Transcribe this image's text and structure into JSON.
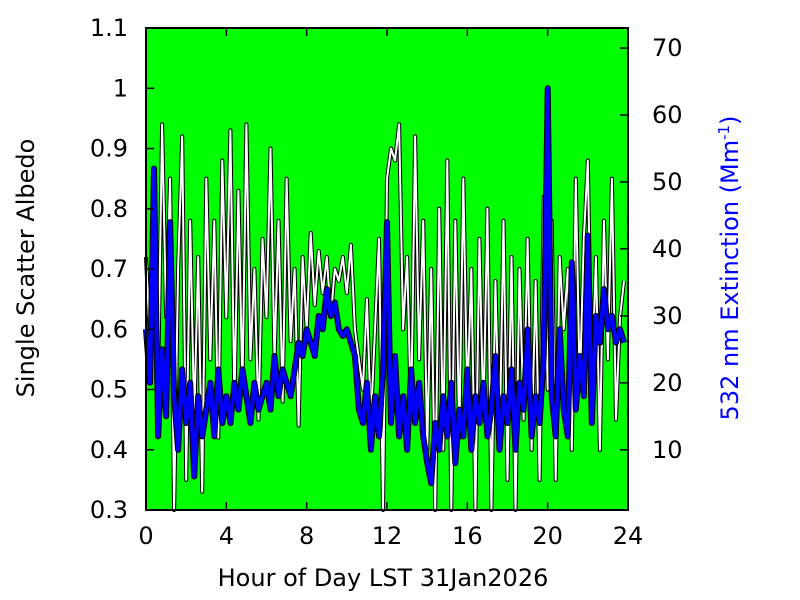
{
  "chart_data": {
    "type": "line",
    "title": "",
    "xlabel": "Hour of Day LST 31Jan2026",
    "ylabel_left": "Single Scatter Albedo",
    "ylabel_right_base": "532 nm Extinction (Mm",
    "ylabel_right_sup": "-1",
    "ylabel_right_close": ")",
    "xlim": [
      0,
      24
    ],
    "ylim_left": [
      0.3,
      1.1
    ],
    "ylim_right": [
      1,
      73
    ],
    "x_ticks": [
      "0",
      "4",
      "8",
      "12",
      "16",
      "20",
      "24"
    ],
    "y_left_ticks": [
      "0.3",
      "0.4",
      "0.5",
      "0.6",
      "0.7",
      "0.8",
      "0.9",
      "1",
      "1.1"
    ],
    "y_right_ticks": [
      "10",
      "20",
      "30",
      "40",
      "50",
      "60",
      "70"
    ],
    "grid": false,
    "plot_background": "#00ff00",
    "series": [
      {
        "axis": "left",
        "color": "#ffffff",
        "outline": "#000000",
        "x": [
          0.0,
          0.2,
          0.4,
          0.6,
          0.8,
          1.0,
          1.2,
          1.4,
          1.6,
          1.8,
          2.0,
          2.2,
          2.4,
          2.6,
          2.8,
          3.0,
          3.2,
          3.4,
          3.6,
          3.8,
          4.0,
          4.2,
          4.4,
          4.6,
          4.8,
          5.0,
          5.2,
          5.4,
          5.6,
          5.8,
          6.0,
          6.2,
          6.4,
          6.6,
          6.8,
          7.0,
          7.2,
          7.4,
          7.6,
          7.8,
          8.0,
          8.2,
          8.4,
          8.6,
          8.8,
          9.0,
          9.2,
          9.4,
          9.6,
          9.8,
          10.0,
          10.2,
          10.4,
          10.6,
          10.8,
          11.0,
          11.2,
          11.4,
          11.6,
          11.8,
          12.0,
          12.2,
          12.4,
          12.6,
          12.8,
          13.0,
          13.2,
          13.4,
          13.6,
          13.8,
          14.0,
          14.2,
          14.4,
          14.6,
          14.8,
          15.0,
          15.2,
          15.4,
          15.6,
          15.8,
          16.0,
          16.2,
          16.4,
          16.6,
          16.8,
          17.0,
          17.2,
          17.4,
          17.6,
          17.8,
          18.0,
          18.2,
          18.4,
          18.6,
          18.8,
          19.0,
          19.2,
          19.4,
          19.6,
          19.8,
          20.0,
          20.2,
          20.4,
          20.6,
          20.8,
          21.0,
          21.2,
          21.4,
          21.6,
          21.8,
          22.0,
          22.2,
          22.4,
          22.6,
          22.8,
          23.0,
          23.2,
          23.4,
          23.6,
          23.8
        ],
        "y": [
          0.72,
          0.58,
          0.8,
          0.51,
          0.94,
          0.62,
          0.85,
          0.3,
          0.7,
          0.92,
          0.35,
          0.78,
          0.45,
          0.72,
          0.33,
          0.85,
          0.55,
          0.78,
          0.42,
          0.88,
          0.62,
          0.93,
          0.48,
          0.83,
          0.5,
          0.94,
          0.55,
          0.7,
          0.45,
          0.75,
          0.62,
          0.9,
          0.55,
          0.78,
          0.48,
          0.85,
          0.58,
          0.7,
          0.44,
          0.72,
          0.6,
          0.76,
          0.64,
          0.73,
          0.66,
          0.72,
          0.62,
          0.7,
          0.68,
          0.72,
          0.66,
          0.74,
          0.6,
          0.55,
          0.5,
          0.65,
          0.45,
          0.6,
          0.75,
          0.3,
          0.85,
          0.9,
          0.88,
          0.94,
          0.6,
          0.72,
          0.45,
          0.92,
          0.55,
          0.78,
          0.4,
          0.7,
          0.3,
          0.8,
          0.4,
          0.88,
          0.3,
          0.78,
          0.42,
          0.85,
          0.48,
          0.7,
          0.3,
          0.75,
          0.45,
          0.8,
          0.3,
          0.68,
          0.4,
          0.78,
          0.35,
          0.72,
          0.3,
          0.7,
          0.45,
          0.75,
          0.4,
          0.68,
          0.35,
          0.82,
          0.5,
          0.78,
          0.35,
          0.72,
          0.6,
          0.7,
          0.4,
          0.85,
          0.5,
          0.75,
          0.88,
          0.5,
          0.72,
          0.4,
          0.78,
          0.55,
          0.85,
          0.45,
          0.62,
          0.68
        ]
      },
      {
        "axis": "right",
        "color": "#0000ff",
        "outline": "#000000",
        "x": [
          0.0,
          0.2,
          0.4,
          0.6,
          0.8,
          1.0,
          1.2,
          1.4,
          1.6,
          1.8,
          2.0,
          2.2,
          2.4,
          2.6,
          2.8,
          3.0,
          3.2,
          3.4,
          3.6,
          3.8,
          4.0,
          4.2,
          4.4,
          4.6,
          4.8,
          5.0,
          5.2,
          5.4,
          5.6,
          5.8,
          6.0,
          6.2,
          6.4,
          6.6,
          6.8,
          7.0,
          7.2,
          7.4,
          7.6,
          7.8,
          8.0,
          8.2,
          8.4,
          8.6,
          8.8,
          9.0,
          9.2,
          9.4,
          9.6,
          9.8,
          10.0,
          10.2,
          10.4,
          10.6,
          10.8,
          11.0,
          11.2,
          11.4,
          11.6,
          11.8,
          12.0,
          12.2,
          12.4,
          12.6,
          12.8,
          13.0,
          13.2,
          13.4,
          13.6,
          13.8,
          14.0,
          14.2,
          14.4,
          14.6,
          14.8,
          15.0,
          15.2,
          15.4,
          15.6,
          15.8,
          16.0,
          16.2,
          16.4,
          16.6,
          16.8,
          17.0,
          17.2,
          17.4,
          17.6,
          17.8,
          18.0,
          18.2,
          18.4,
          18.6,
          18.8,
          19.0,
          19.2,
          19.4,
          19.6,
          19.8,
          20.0,
          20.2,
          20.4,
          20.6,
          20.8,
          21.0,
          21.2,
          21.4,
          21.6,
          21.8,
          22.0,
          22.2,
          22.4,
          22.6,
          22.8,
          23.0,
          23.2,
          23.4,
          23.6,
          23.8
        ],
        "y": [
          28,
          20,
          52,
          12,
          25,
          15,
          44,
          18,
          10,
          22,
          14,
          20,
          6,
          18,
          12,
          16,
          20,
          12,
          22,
          14,
          18,
          14,
          20,
          16,
          22,
          18,
          14,
          20,
          16,
          18,
          20,
          16,
          24,
          18,
          22,
          20,
          18,
          22,
          26,
          24,
          28,
          26,
          24,
          30,
          28,
          34,
          30,
          32,
          28,
          27,
          28,
          26,
          24,
          16,
          14,
          20,
          10,
          18,
          12,
          22,
          44,
          14,
          24,
          12,
          18,
          10,
          22,
          14,
          20,
          12,
          8,
          5,
          14,
          10,
          18,
          12,
          20,
          8,
          16,
          12,
          22,
          10,
          18,
          14,
          20,
          12,
          16,
          24,
          10,
          18,
          14,
          22,
          10,
          20,
          16,
          28,
          12,
          18,
          14,
          24,
          64,
          18,
          12,
          28,
          16,
          12,
          38,
          16,
          24,
          18,
          42,
          14,
          30,
          26,
          34,
          28,
          30,
          26,
          28,
          26
        ]
      }
    ]
  }
}
